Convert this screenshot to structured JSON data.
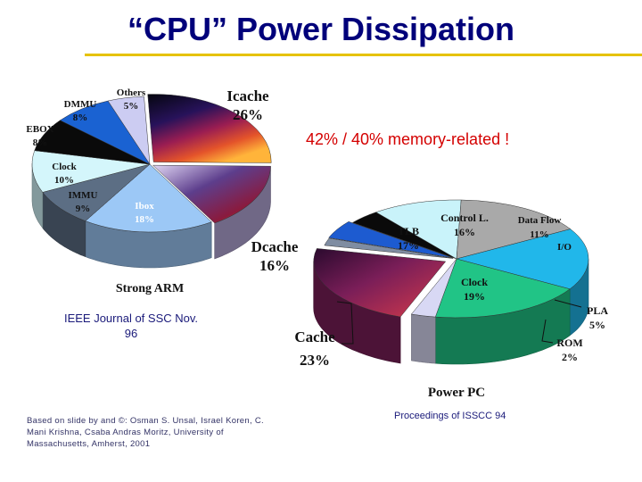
{
  "slide": {
    "title": "“CPU” Power Dissipation",
    "callout": "42% / 40% memory-related !",
    "source_left": [
      "IEEE Journal of SSC Nov.",
      "96"
    ],
    "credit": [
      "Based on slide by and ©: Osman S. Unsal, Israel Koren, C.",
      "Mani Krishna, Csaba Andras Moritz, University of",
      "Massachusetts, Amherst, 2001"
    ],
    "source_right": "Proceedings of ISSCC 94"
  },
  "chart_data": [
    {
      "type": "pie",
      "title": "Strong ARM",
      "slices": [
        {
          "label": "Icache",
          "value": 26,
          "text": "26%",
          "color": "#c0254a"
        },
        {
          "label": "Dcache",
          "value": 16,
          "text": "16%",
          "color": "#b5a8d8"
        },
        {
          "label": "Ibox",
          "value": 18,
          "text": "18%",
          "color": "#9cc8f6"
        },
        {
          "label": "IMMU",
          "value": 9,
          "text": "9%",
          "color": "#5c6e84"
        },
        {
          "label": "Clock",
          "value": 10,
          "text": "10%",
          "color": "#d4f6fb"
        },
        {
          "label": "EBOX",
          "value": 8,
          "text": "8%",
          "color": "#0a0a0a"
        },
        {
          "label": "DMMU",
          "value": 8,
          "text": "8%",
          "color": "#1a62d2"
        },
        {
          "label": "Others",
          "value": 5,
          "text": "5%",
          "color": "#ccccf2"
        }
      ]
    },
    {
      "type": "pie",
      "title": "Power PC",
      "slices": [
        {
          "label": "Cache",
          "value": 23,
          "text": "23%",
          "color": "#7a1e58"
        },
        {
          "label": "ROM",
          "value": 2,
          "text": "2%",
          "color": "#7f8da2"
        },
        {
          "label": "PLA",
          "value": 5,
          "text": "5%",
          "color": "#1d5bd0"
        },
        {
          "label": "I/O",
          "value": 4,
          "text": "",
          "color": "#0a0a0a"
        },
        {
          "label": "Data Flow",
          "value": 11,
          "text": "11%",
          "color": "#c9f3fa"
        },
        {
          "label": "Control L.",
          "value": 16,
          "text": "16%",
          "color": "#a9a9a9"
        },
        {
          "label": "TLB",
          "value": 17,
          "text": "17%",
          "color": "#21b7ea"
        },
        {
          "label": "Clock",
          "value": 19,
          "text": "19%",
          "color": "#21c486"
        },
        {
          "label": "",
          "value": 3,
          "text": "",
          "color": "#d8d8f4"
        }
      ]
    }
  ]
}
